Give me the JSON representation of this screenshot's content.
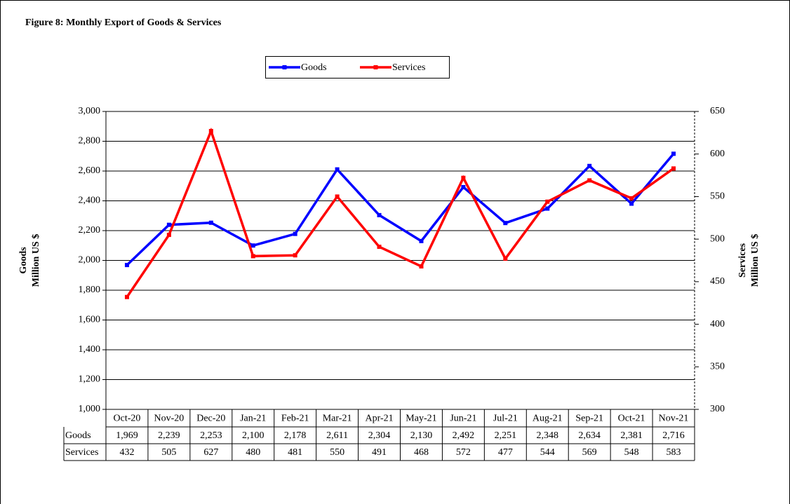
{
  "chart_data": {
    "type": "line",
    "title": "Figure 8: Monthly  Export  of Goods & Services",
    "ylabel": [
      "Goods",
      "Million US $"
    ],
    "y2label": [
      "Services",
      "Million US $"
    ],
    "categories": [
      "Oct-20",
      "Nov-20",
      "Dec-20",
      "Jan-21",
      "Feb-21",
      "Mar-21",
      "Apr-21",
      "May-21",
      "Jun-21",
      "Jul-21",
      "Aug-21",
      "Sep-21",
      "Oct-21",
      "Nov-21"
    ],
    "series": [
      {
        "name": "Goods",
        "color": "#0000ff",
        "values": [
          1969,
          2239,
          2253,
          2100,
          2178,
          2611,
          2304,
          2130,
          2492,
          2251,
          2348,
          2634,
          2381,
          2716
        ],
        "value_labels": [
          "1,969",
          "2,239",
          "2,253",
          "2,100",
          "2,178",
          "2,611",
          "2,304",
          "2,130",
          "2,492",
          "2,251",
          "2,348",
          "2,634",
          "2,381",
          "2,716"
        ]
      },
      {
        "name": "Services",
        "color": "#ff0000",
        "axis": "y2",
        "values": [
          432,
          505,
          627,
          480,
          481,
          550,
          491,
          468,
          572,
          477,
          544,
          569,
          548,
          583
        ]
      }
    ],
    "ylim": [
      1000,
      3000
    ],
    "yticks": [
      {
        "value": 1000,
        "label": "1,000"
      },
      {
        "value": 1200,
        "label": "1,200"
      },
      {
        "value": 1400,
        "label": "1,400"
      },
      {
        "value": 1600,
        "label": "1,600"
      },
      {
        "value": 1800,
        "label": "1,800"
      },
      {
        "value": 2000,
        "label": "2,000"
      },
      {
        "value": 2200,
        "label": "2,200"
      },
      {
        "value": 2400,
        "label": "2,400"
      },
      {
        "value": 2600,
        "label": "2,600"
      },
      {
        "value": 2800,
        "label": "2,800"
      },
      {
        "value": 3000,
        "label": "3,000"
      }
    ],
    "y2lim": [
      300,
      650
    ],
    "y2ticks": [
      300,
      350,
      400,
      450,
      500,
      550,
      600,
      650
    ],
    "grid": true,
    "legend": "top"
  }
}
